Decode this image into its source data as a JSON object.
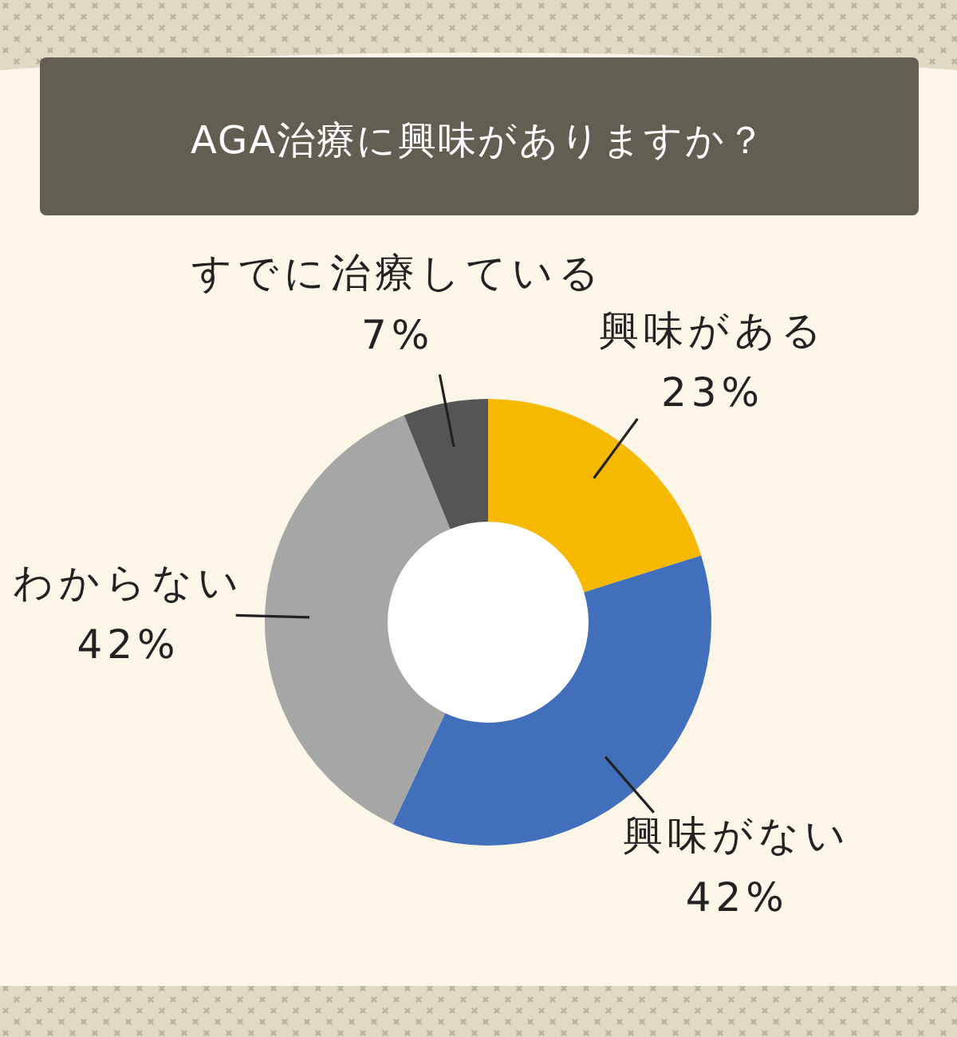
{
  "chart_data": {
    "type": "donut",
    "title": "AGA治療に興味がありますか？",
    "categories": [
      "興味がある",
      "興味がない",
      "わからない",
      "すでに治療している"
    ],
    "values": [
      23,
      42,
      42,
      7
    ],
    "colors": [
      "#f6b900",
      "#416fbb",
      "#a6a6a6",
      "#555555"
    ],
    "value_labels": [
      "23%",
      "42%",
      "42%",
      "7%"
    ]
  }
}
